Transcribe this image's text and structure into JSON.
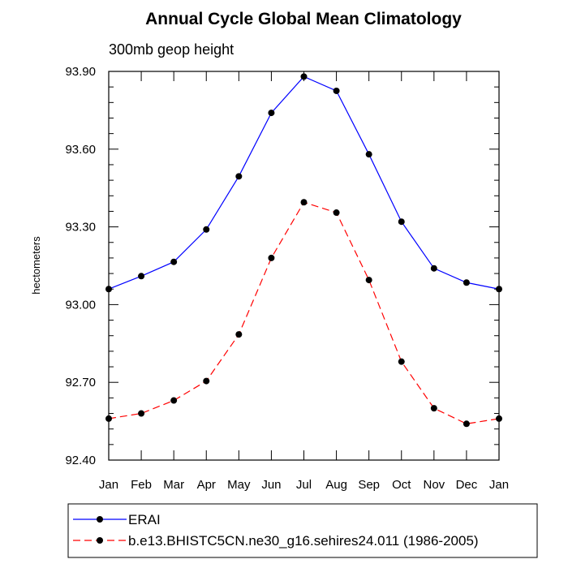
{
  "chart_data": {
    "type": "line",
    "title": "Annual Cycle Global Mean Climatology",
    "subtitle": "300mb geop height",
    "xlabel": "",
    "ylabel": "hectometers",
    "categories": [
      "Jan",
      "Feb",
      "Mar",
      "Apr",
      "May",
      "Jun",
      "Jul",
      "Aug",
      "Sep",
      "Oct",
      "Nov",
      "Dec",
      "Jan"
    ],
    "ylim": [
      92.4,
      93.9
    ],
    "yticks": [
      "92.40",
      "92.70",
      "93.00",
      "93.30",
      "93.60",
      "93.90"
    ],
    "grid": false,
    "legend_position": "bottom",
    "series": [
      {
        "name": "ERAI",
        "color": "#0000ff",
        "line_style": "solid",
        "marker": "filled-circle",
        "values": [
          93.06,
          93.11,
          93.165,
          93.29,
          93.495,
          93.74,
          93.88,
          93.825,
          93.58,
          93.32,
          93.14,
          93.085,
          93.06
        ]
      },
      {
        "name": "b.e13.BHISTC5CN.ne30_g16.sehires24.011 (1986-2005)",
        "color": "#ff0000",
        "line_style": "dashed",
        "marker": "filled-circle",
        "values": [
          92.56,
          92.58,
          92.63,
          92.705,
          92.885,
          93.18,
          93.395,
          93.355,
          93.095,
          92.78,
          92.6,
          92.54,
          92.56
        ]
      }
    ]
  }
}
